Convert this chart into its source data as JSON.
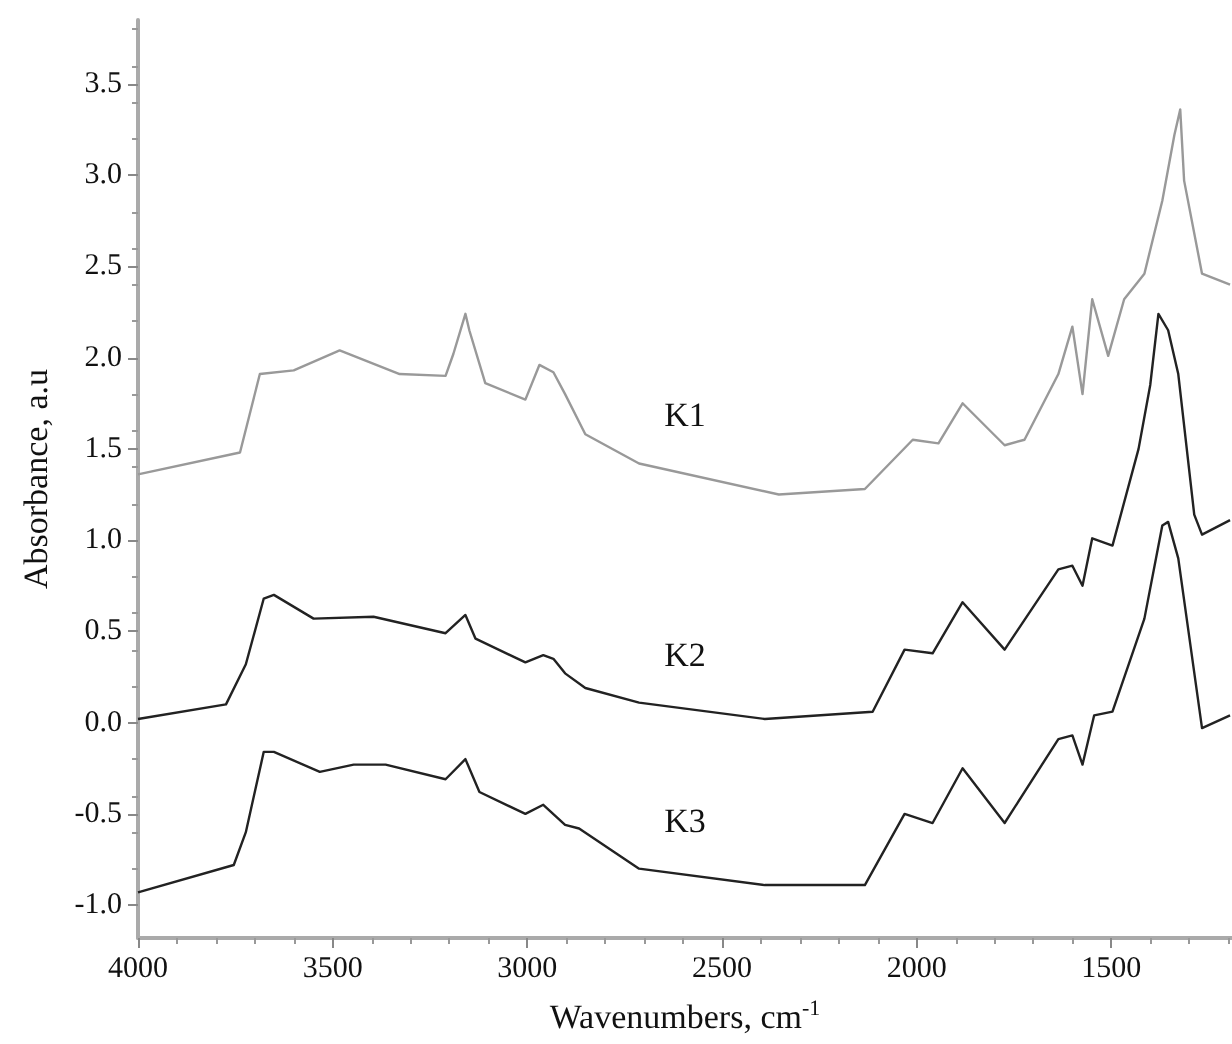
{
  "chart_data": {
    "type": "line",
    "xlabel": "Wavenumbers, cm$^{-1}$",
    "ylabel": "Absorbance, a.u",
    "xlim": [
      4000,
      1190
    ],
    "ylim": [
      -1.18,
      3.85
    ],
    "xticks": [
      4000,
      3500,
      3000,
      2500,
      2000,
      1500
    ],
    "yticks": [
      {
        "value": -1.0,
        "label": "-1.0"
      },
      {
        "value": -0.5,
        "label": "-0.5"
      },
      {
        "value": 0.0,
        "label": "0.0"
      },
      {
        "value": 0.5,
        "label": "0.5"
      },
      {
        "value": 1.0,
        "label": "1.0"
      },
      {
        "value": 1.5,
        "label": "1.5"
      },
      {
        "value": 2.0,
        "label": "2.0"
      },
      {
        "value": 2.5,
        "label": "2.5"
      },
      {
        "value": 3.0,
        "label": "3.0"
      },
      {
        "value": 3.5,
        "label": "3.5"
      }
    ],
    "grid": false,
    "marker": "none",
    "series": [
      {
        "name": "K1",
        "color": "#999999",
        "x": [
          4000,
          3738,
          3687,
          3600,
          3482,
          3328,
          3210,
          3190,
          3159,
          3149,
          3108,
          3005,
          2969,
          2933,
          2903,
          2851,
          2713,
          2354,
          2133,
          2010,
          1944,
          1882,
          1774,
          1723,
          1636,
          1600,
          1574,
          1549,
          1508,
          1467,
          1415,
          1369,
          1338,
          1323,
          1313,
          1267,
          1195
        ],
        "values": [
          1.36,
          1.48,
          1.91,
          1.93,
          2.04,
          1.91,
          1.9,
          2.02,
          2.24,
          2.15,
          1.86,
          1.77,
          1.96,
          1.92,
          1.8,
          1.58,
          1.42,
          1.25,
          1.28,
          1.55,
          1.53,
          1.75,
          1.52,
          1.55,
          1.91,
          2.17,
          1.8,
          2.32,
          2.01,
          2.32,
          2.46,
          2.86,
          3.22,
          3.36,
          2.97,
          2.46,
          2.4
        ]
      },
      {
        "name": "K2",
        "color": "#222222",
        "x": [
          4000,
          3774,
          3723,
          3677,
          3651,
          3549,
          3395,
          3210,
          3159,
          3133,
          3005,
          2959,
          2933,
          2903,
          2851,
          2713,
          2390,
          2113,
          2031,
          1959,
          1882,
          1774,
          1636,
          1600,
          1574,
          1549,
          1497,
          1430,
          1400,
          1379,
          1354,
          1328,
          1287,
          1267,
          1195
        ],
        "values": [
          0.02,
          0.1,
          0.32,
          0.68,
          0.7,
          0.57,
          0.58,
          0.49,
          0.59,
          0.46,
          0.33,
          0.37,
          0.35,
          0.27,
          0.19,
          0.11,
          0.02,
          0.06,
          0.4,
          0.38,
          0.66,
          0.4,
          0.84,
          0.86,
          0.75,
          1.01,
          0.97,
          1.5,
          1.85,
          2.24,
          2.15,
          1.91,
          1.14,
          1.03,
          1.11
        ]
      },
      {
        "name": "K3",
        "color": "#222222",
        "x": [
          4000,
          3754,
          3723,
          3677,
          3651,
          3533,
          3446,
          3364,
          3210,
          3159,
          3123,
          3005,
          2959,
          2903,
          2867,
          2713,
          2390,
          2133,
          2031,
          1959,
          1882,
          1774,
          1636,
          1600,
          1574,
          1544,
          1497,
          1415,
          1369,
          1354,
          1328,
          1267,
          1195
        ],
        "values": [
          -0.93,
          -0.78,
          -0.6,
          -0.16,
          -0.16,
          -0.27,
          -0.23,
          -0.23,
          -0.31,
          -0.2,
          -0.38,
          -0.5,
          -0.45,
          -0.56,
          -0.58,
          -0.8,
          -0.89,
          -0.89,
          -0.5,
          -0.55,
          -0.25,
          -0.55,
          -0.09,
          -0.07,
          -0.23,
          0.04,
          0.06,
          0.57,
          1.08,
          1.1,
          0.9,
          -0.03,
          0.04
        ]
      }
    ]
  }
}
